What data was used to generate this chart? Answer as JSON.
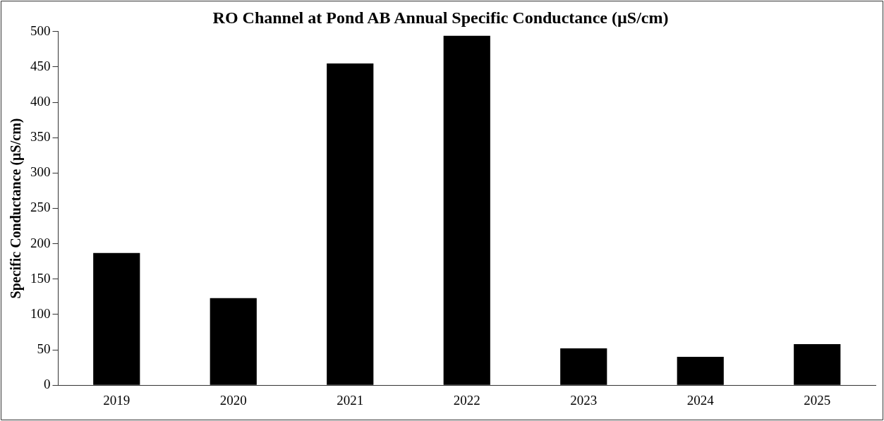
{
  "chart_data": {
    "type": "bar",
    "title": "RO Channel at Pond AB Annual Specific Conductance (µS/cm)",
    "ylabel": "Specific Conductance (µS/cm)",
    "categories": [
      "2019",
      "2020",
      "2021",
      "2022",
      "2023",
      "2024",
      "2025"
    ],
    "values": [
      187,
      123,
      455,
      494,
      52,
      40,
      58
    ],
    "color": "#000000",
    "ylim": [
      0,
      500
    ],
    "yticks": [
      0,
      50,
      100,
      150,
      200,
      250,
      300,
      350,
      400,
      450,
      500
    ],
    "grid": false,
    "legend": false
  }
}
